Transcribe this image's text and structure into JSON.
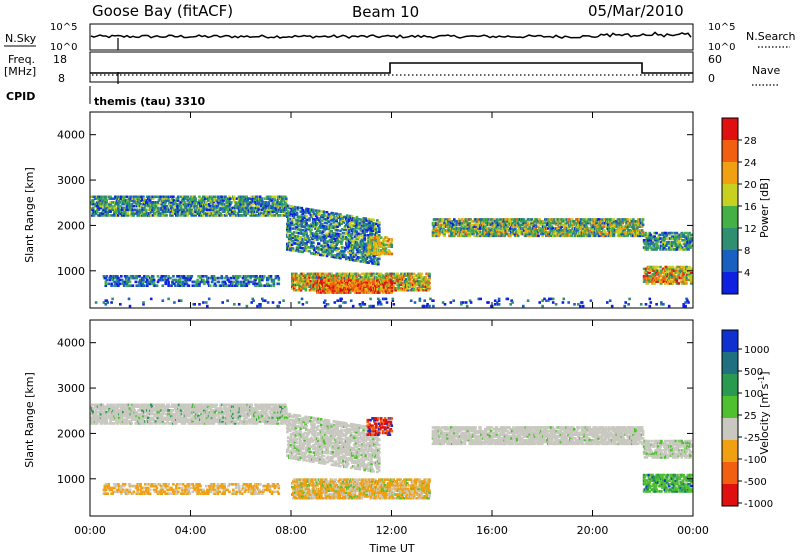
{
  "header": {
    "station": "Goose Bay (fitACF)",
    "beam": "Beam 10",
    "date": "05/Mar/2010"
  },
  "top_panels": {
    "nsky_label": "N.Sky",
    "nsky_ticks": [
      "10^5",
      "10^0"
    ],
    "nsearch_label": "N.Search",
    "nsearch_ticks": [
      "10^5",
      "10^0"
    ],
    "freq_label_line1": "Freq.",
    "freq_label_line2": "[MHz]",
    "freq_ticks": [
      "18",
      "8"
    ],
    "nave_label": "Nave",
    "nave_ticks": [
      "60",
      "0"
    ],
    "cpid_label": "CPID",
    "cpid_value": "themis (tau) 3310"
  },
  "chart_data": [
    {
      "type": "heatmap",
      "panel": "power",
      "ylabel": "Slant Range [km]",
      "ylim": [
        180,
        4500
      ],
      "yticks": [
        "1000",
        "2000",
        "3000",
        "4000"
      ],
      "colorbar_label": "Power [dB]",
      "colorbar_ticks": [
        "4",
        "8",
        "12",
        "16",
        "20",
        "24",
        "28"
      ],
      "colorbar_range": [
        0,
        32
      ],
      "colors": [
        "#1020e0",
        "#1a60c0",
        "#2f8f70",
        "#45b045",
        "#c8d020",
        "#f0a010",
        "#f06010",
        "#e01010"
      ],
      "scatter_areas": [
        {
          "t": [
            0,
            7.5
          ],
          "r": [
            2200,
            2800
          ],
          "level": "mixed-low-mid"
        },
        {
          "t": [
            7.5,
            12
          ],
          "r": [
            1300,
            2700
          ],
          "level": "mixed"
        },
        {
          "t": [
            13.5,
            22
          ],
          "r": [
            1750,
            2300
          ],
          "level": "mixed-mid-high"
        },
        {
          "t": [
            22,
            24
          ],
          "r": [
            1500,
            2000
          ],
          "level": "mixed"
        },
        {
          "t": [
            0,
            8
          ],
          "r": [
            700,
            1000
          ],
          "level": "low-mid"
        },
        {
          "t": [
            8,
            14
          ],
          "r": [
            500,
            1200
          ],
          "level": "high"
        },
        {
          "t": [
            22,
            24
          ],
          "r": [
            700,
            1200
          ],
          "level": "high"
        }
      ]
    },
    {
      "type": "heatmap",
      "panel": "velocity",
      "xlabel": "Time UT",
      "xticks": [
        "00:00",
        "04:00",
        "08:00",
        "12:00",
        "16:00",
        "20:00",
        "00:00"
      ],
      "xlim": [
        0,
        24
      ],
      "ylabel": "Slant Range [km]",
      "ylim": [
        180,
        4500
      ],
      "yticks": [
        "1000",
        "2000",
        "3000",
        "4000"
      ],
      "colorbar_label": "Velocity [m s^-1]",
      "colorbar_ticks": [
        "1000",
        "500",
        "100",
        "25",
        "-25",
        "-100",
        "-500",
        "-1000"
      ],
      "colors": [
        "#1030d0",
        "#207080",
        "#2a9a50",
        "#50c030",
        "#c8c8c0",
        "#f0a010",
        "#f06010",
        "#e01010"
      ],
      "scatter_areas": [
        {
          "t": [
            0,
            12
          ],
          "r": [
            1500,
            2800
          ],
          "level": "ground-scatter"
        },
        {
          "t": [
            13.5,
            24
          ],
          "r": [
            1600,
            2200
          ],
          "level": "ground-scatter"
        },
        {
          "t": [
            0,
            8
          ],
          "r": [
            700,
            900
          ],
          "level": "negative"
        },
        {
          "t": [
            8,
            14
          ],
          "r": [
            600,
            1100
          ],
          "level": "negative"
        },
        {
          "t": [
            22,
            24
          ],
          "r": [
            700,
            1200
          ],
          "level": "positive"
        }
      ]
    }
  ]
}
